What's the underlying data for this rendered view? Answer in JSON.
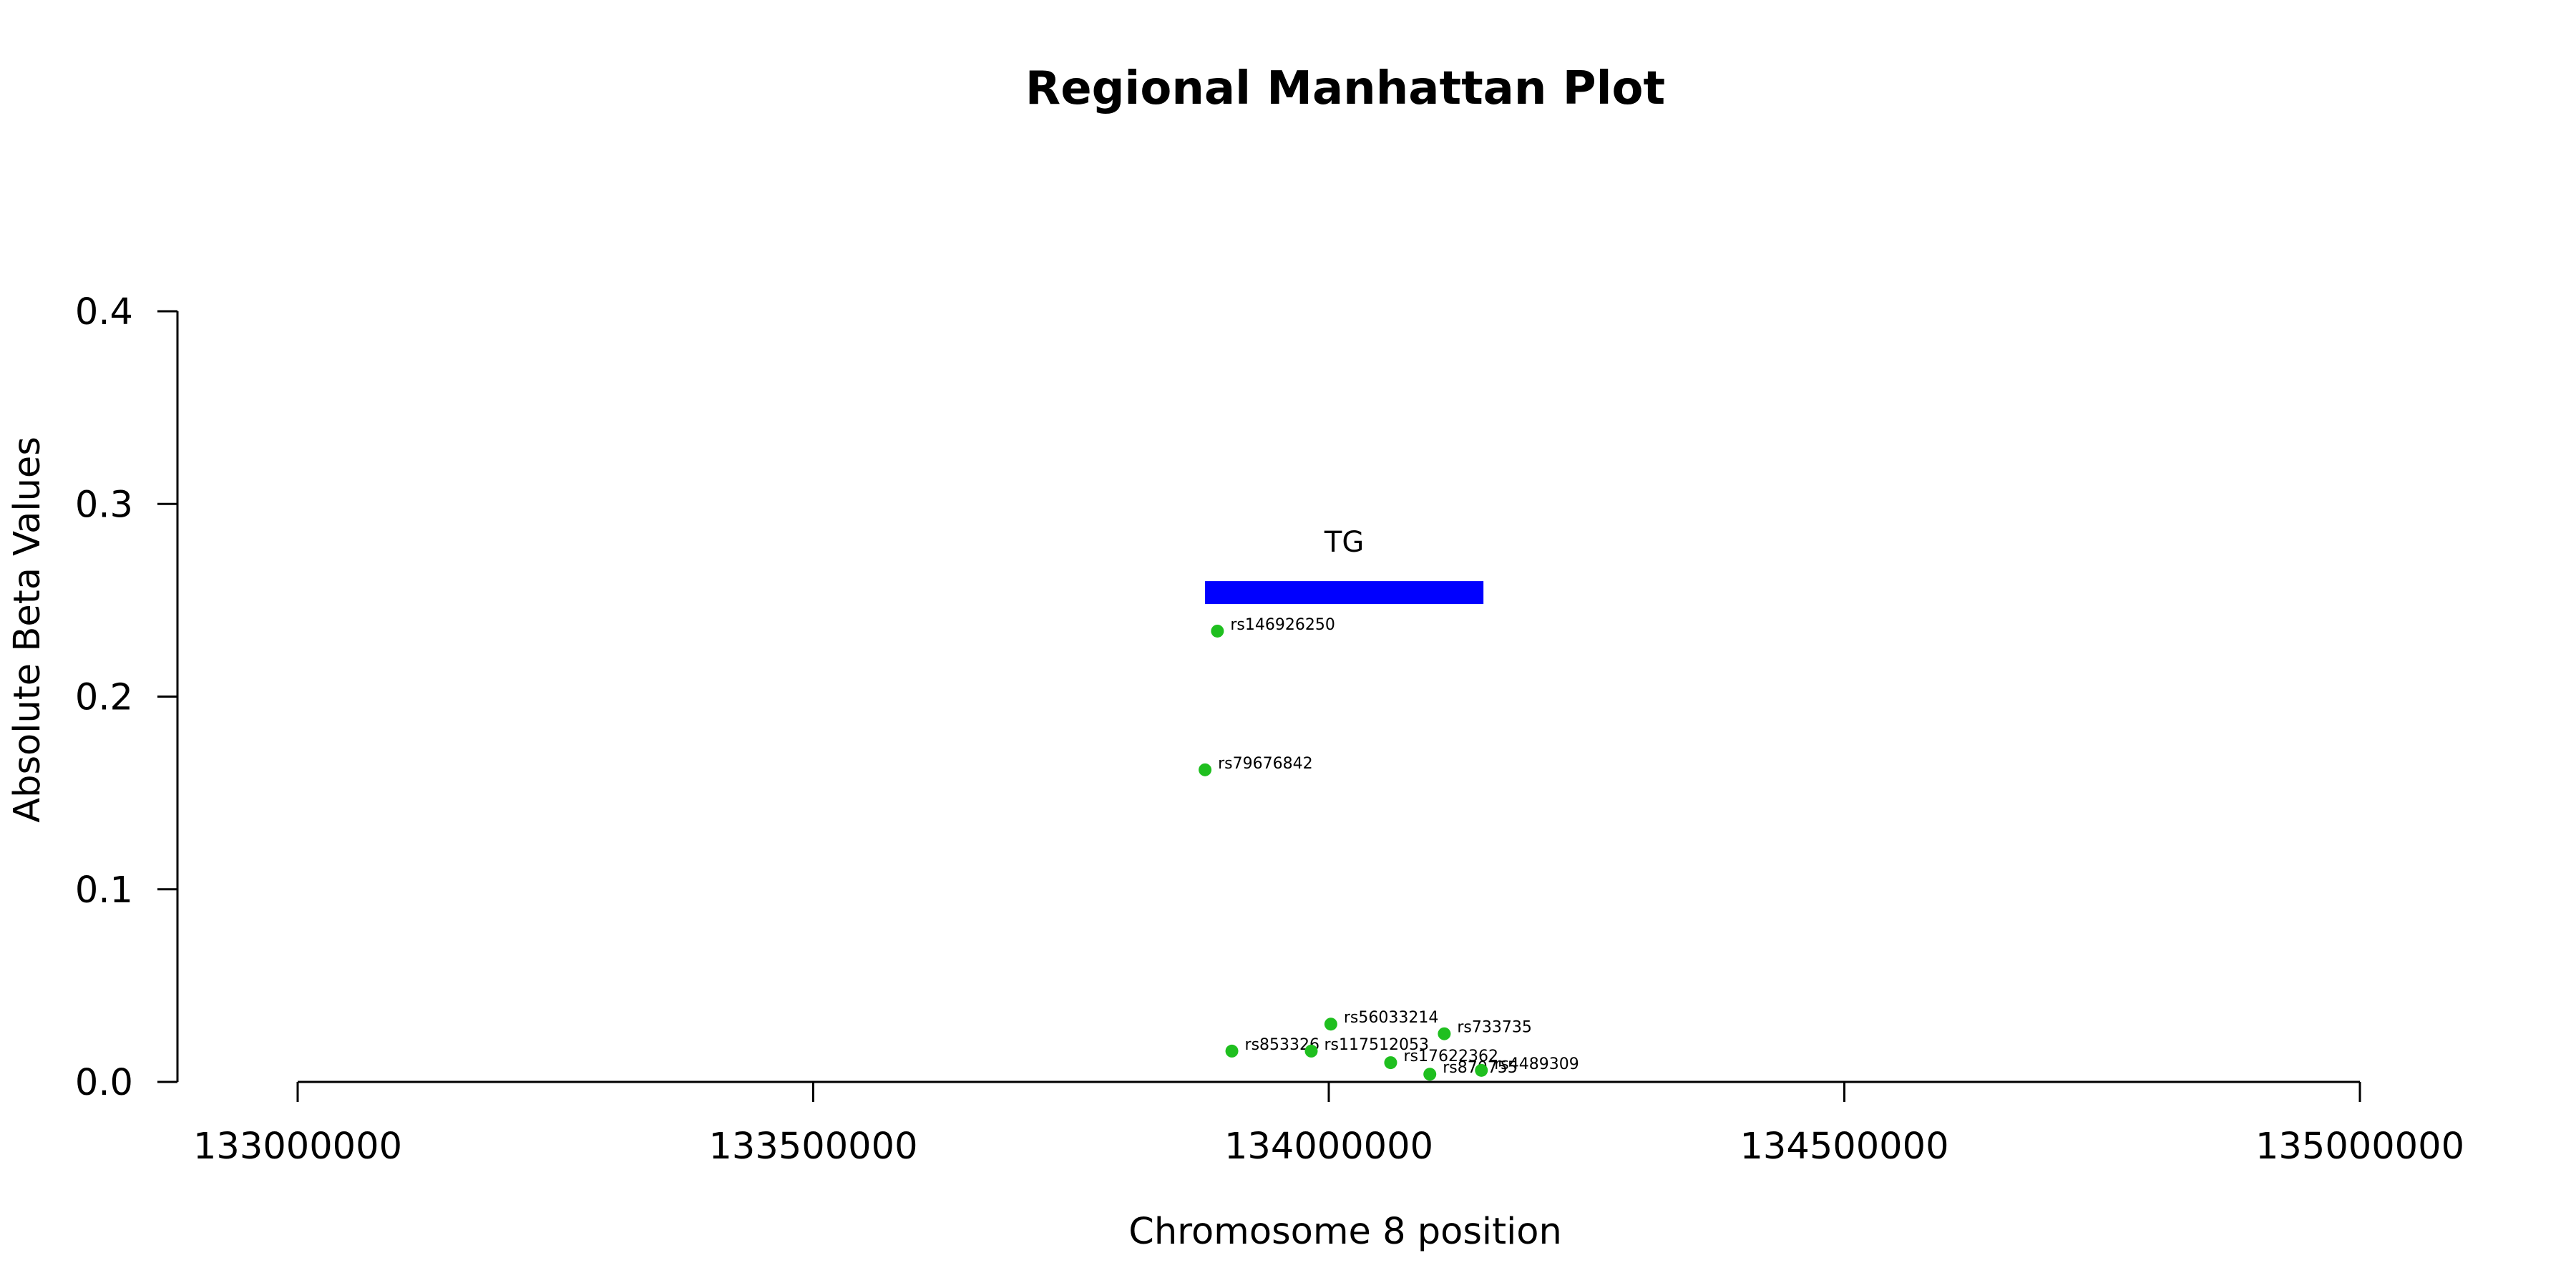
{
  "chart_data": {
    "type": "scatter",
    "title": "Regional Manhattan Plot",
    "xlabel": "Chromosome 8 position",
    "ylabel": "Absolute Beta Values",
    "xlim": [
      133000000,
      135000000
    ],
    "ylim": [
      0,
      0.4
    ],
    "x_ticks": [
      133000000,
      133500000,
      134000000,
      134500000,
      135000000
    ],
    "y_ticks": [
      0.0,
      0.1,
      0.2,
      0.3,
      0.4
    ],
    "x_tick_labels": [
      "133000000",
      "133500000",
      "134000000",
      "134500000",
      "135000000"
    ],
    "y_tick_labels": [
      "0.0",
      "0.1",
      "0.2",
      "0.3",
      "0.4"
    ],
    "grid": false,
    "point_color": "#1fbf1f",
    "gene": {
      "name": "TG",
      "start": 133880000,
      "end": 134150000,
      "y": 0.254,
      "color": "#0000ff"
    },
    "points": [
      {
        "label": "rs146926250",
        "x": 133892000,
        "y": 0.234
      },
      {
        "label": "rs79676842",
        "x": 133880000,
        "y": 0.162
      },
      {
        "label": "rs56033214",
        "x": 134002000,
        "y": 0.03
      },
      {
        "label": "rs733735",
        "x": 134112000,
        "y": 0.025
      },
      {
        "label": "rs853326",
        "x": 133906000,
        "y": 0.016
      },
      {
        "label": "rs117512053",
        "x": 133983000,
        "y": 0.016
      },
      {
        "label": "rs17622362",
        "x": 134060000,
        "y": 0.01
      },
      {
        "label": "rs870755",
        "x": 134098000,
        "y": 0.004
      },
      {
        "label": "rs4489309",
        "x": 134148000,
        "y": 0.006
      }
    ]
  }
}
